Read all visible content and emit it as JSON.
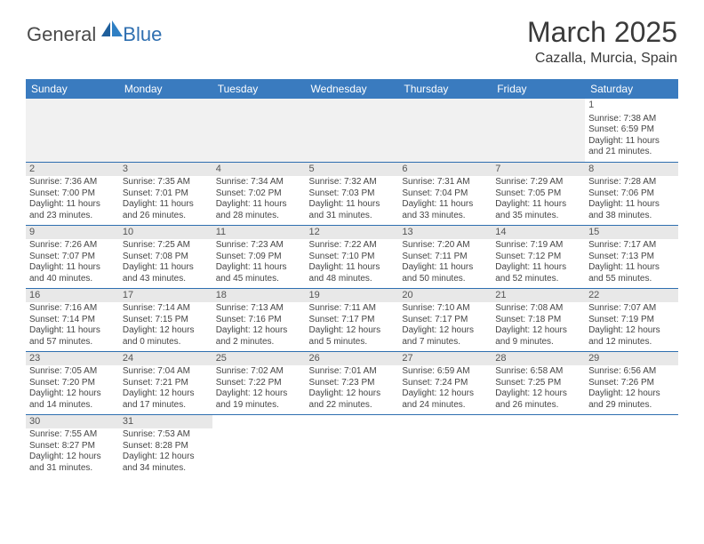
{
  "logo": {
    "part1": "General",
    "part2": "Blue"
  },
  "title": "March 2025",
  "location": "Cazalla, Murcia, Spain",
  "colors": {
    "header_bg": "#3a7bbf",
    "header_text": "#ffffff",
    "cell_border": "#2f6fb0",
    "daynum_bg": "#e8e8e8",
    "body_text": "#454545",
    "logo_blue": "#2f6fb0"
  },
  "day_headers": [
    "Sunday",
    "Monday",
    "Tuesday",
    "Wednesday",
    "Thursday",
    "Friday",
    "Saturday"
  ],
  "weeks": [
    [
      null,
      null,
      null,
      null,
      null,
      null,
      {
        "n": "1",
        "sr": "Sunrise: 7:38 AM",
        "ss": "Sunset: 6:59 PM",
        "dl": "Daylight: 11 hours and 21 minutes."
      }
    ],
    [
      {
        "n": "2",
        "sr": "Sunrise: 7:36 AM",
        "ss": "Sunset: 7:00 PM",
        "dl": "Daylight: 11 hours and 23 minutes."
      },
      {
        "n": "3",
        "sr": "Sunrise: 7:35 AM",
        "ss": "Sunset: 7:01 PM",
        "dl": "Daylight: 11 hours and 26 minutes."
      },
      {
        "n": "4",
        "sr": "Sunrise: 7:34 AM",
        "ss": "Sunset: 7:02 PM",
        "dl": "Daylight: 11 hours and 28 minutes."
      },
      {
        "n": "5",
        "sr": "Sunrise: 7:32 AM",
        "ss": "Sunset: 7:03 PM",
        "dl": "Daylight: 11 hours and 31 minutes."
      },
      {
        "n": "6",
        "sr": "Sunrise: 7:31 AM",
        "ss": "Sunset: 7:04 PM",
        "dl": "Daylight: 11 hours and 33 minutes."
      },
      {
        "n": "7",
        "sr": "Sunrise: 7:29 AM",
        "ss": "Sunset: 7:05 PM",
        "dl": "Daylight: 11 hours and 35 minutes."
      },
      {
        "n": "8",
        "sr": "Sunrise: 7:28 AM",
        "ss": "Sunset: 7:06 PM",
        "dl": "Daylight: 11 hours and 38 minutes."
      }
    ],
    [
      {
        "n": "9",
        "sr": "Sunrise: 7:26 AM",
        "ss": "Sunset: 7:07 PM",
        "dl": "Daylight: 11 hours and 40 minutes."
      },
      {
        "n": "10",
        "sr": "Sunrise: 7:25 AM",
        "ss": "Sunset: 7:08 PM",
        "dl": "Daylight: 11 hours and 43 minutes."
      },
      {
        "n": "11",
        "sr": "Sunrise: 7:23 AM",
        "ss": "Sunset: 7:09 PM",
        "dl": "Daylight: 11 hours and 45 minutes."
      },
      {
        "n": "12",
        "sr": "Sunrise: 7:22 AM",
        "ss": "Sunset: 7:10 PM",
        "dl": "Daylight: 11 hours and 48 minutes."
      },
      {
        "n": "13",
        "sr": "Sunrise: 7:20 AM",
        "ss": "Sunset: 7:11 PM",
        "dl": "Daylight: 11 hours and 50 minutes."
      },
      {
        "n": "14",
        "sr": "Sunrise: 7:19 AM",
        "ss": "Sunset: 7:12 PM",
        "dl": "Daylight: 11 hours and 52 minutes."
      },
      {
        "n": "15",
        "sr": "Sunrise: 7:17 AM",
        "ss": "Sunset: 7:13 PM",
        "dl": "Daylight: 11 hours and 55 minutes."
      }
    ],
    [
      {
        "n": "16",
        "sr": "Sunrise: 7:16 AM",
        "ss": "Sunset: 7:14 PM",
        "dl": "Daylight: 11 hours and 57 minutes."
      },
      {
        "n": "17",
        "sr": "Sunrise: 7:14 AM",
        "ss": "Sunset: 7:15 PM",
        "dl": "Daylight: 12 hours and 0 minutes."
      },
      {
        "n": "18",
        "sr": "Sunrise: 7:13 AM",
        "ss": "Sunset: 7:16 PM",
        "dl": "Daylight: 12 hours and 2 minutes."
      },
      {
        "n": "19",
        "sr": "Sunrise: 7:11 AM",
        "ss": "Sunset: 7:17 PM",
        "dl": "Daylight: 12 hours and 5 minutes."
      },
      {
        "n": "20",
        "sr": "Sunrise: 7:10 AM",
        "ss": "Sunset: 7:17 PM",
        "dl": "Daylight: 12 hours and 7 minutes."
      },
      {
        "n": "21",
        "sr": "Sunrise: 7:08 AM",
        "ss": "Sunset: 7:18 PM",
        "dl": "Daylight: 12 hours and 9 minutes."
      },
      {
        "n": "22",
        "sr": "Sunrise: 7:07 AM",
        "ss": "Sunset: 7:19 PM",
        "dl": "Daylight: 12 hours and 12 minutes."
      }
    ],
    [
      {
        "n": "23",
        "sr": "Sunrise: 7:05 AM",
        "ss": "Sunset: 7:20 PM",
        "dl": "Daylight: 12 hours and 14 minutes."
      },
      {
        "n": "24",
        "sr": "Sunrise: 7:04 AM",
        "ss": "Sunset: 7:21 PM",
        "dl": "Daylight: 12 hours and 17 minutes."
      },
      {
        "n": "25",
        "sr": "Sunrise: 7:02 AM",
        "ss": "Sunset: 7:22 PM",
        "dl": "Daylight: 12 hours and 19 minutes."
      },
      {
        "n": "26",
        "sr": "Sunrise: 7:01 AM",
        "ss": "Sunset: 7:23 PM",
        "dl": "Daylight: 12 hours and 22 minutes."
      },
      {
        "n": "27",
        "sr": "Sunrise: 6:59 AM",
        "ss": "Sunset: 7:24 PM",
        "dl": "Daylight: 12 hours and 24 minutes."
      },
      {
        "n": "28",
        "sr": "Sunrise: 6:58 AM",
        "ss": "Sunset: 7:25 PM",
        "dl": "Daylight: 12 hours and 26 minutes."
      },
      {
        "n": "29",
        "sr": "Sunrise: 6:56 AM",
        "ss": "Sunset: 7:26 PM",
        "dl": "Daylight: 12 hours and 29 minutes."
      }
    ],
    [
      {
        "n": "30",
        "sr": "Sunrise: 7:55 AM",
        "ss": "Sunset: 8:27 PM",
        "dl": "Daylight: 12 hours and 31 minutes."
      },
      {
        "n": "31",
        "sr": "Sunrise: 7:53 AM",
        "ss": "Sunset: 8:28 PM",
        "dl": "Daylight: 12 hours and 34 minutes."
      },
      null,
      null,
      null,
      null,
      null
    ]
  ]
}
